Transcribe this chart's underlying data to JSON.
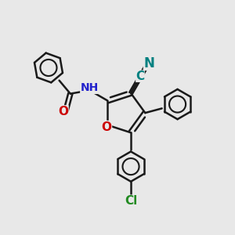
{
  "background_color": "#e8e8e8",
  "line_color": "#1a1a1a",
  "bond_width": 1.8,
  "font_size": 10,
  "colors": {
    "O": "#cc0000",
    "N": "#2222cc",
    "CN_C": "#008080",
    "CN_N": "#008080",
    "Cl": "#228B22",
    "H": "#777777",
    "bond": "#1a1a1a"
  },
  "figsize": [
    3.0,
    3.0
  ],
  "dpi": 100
}
